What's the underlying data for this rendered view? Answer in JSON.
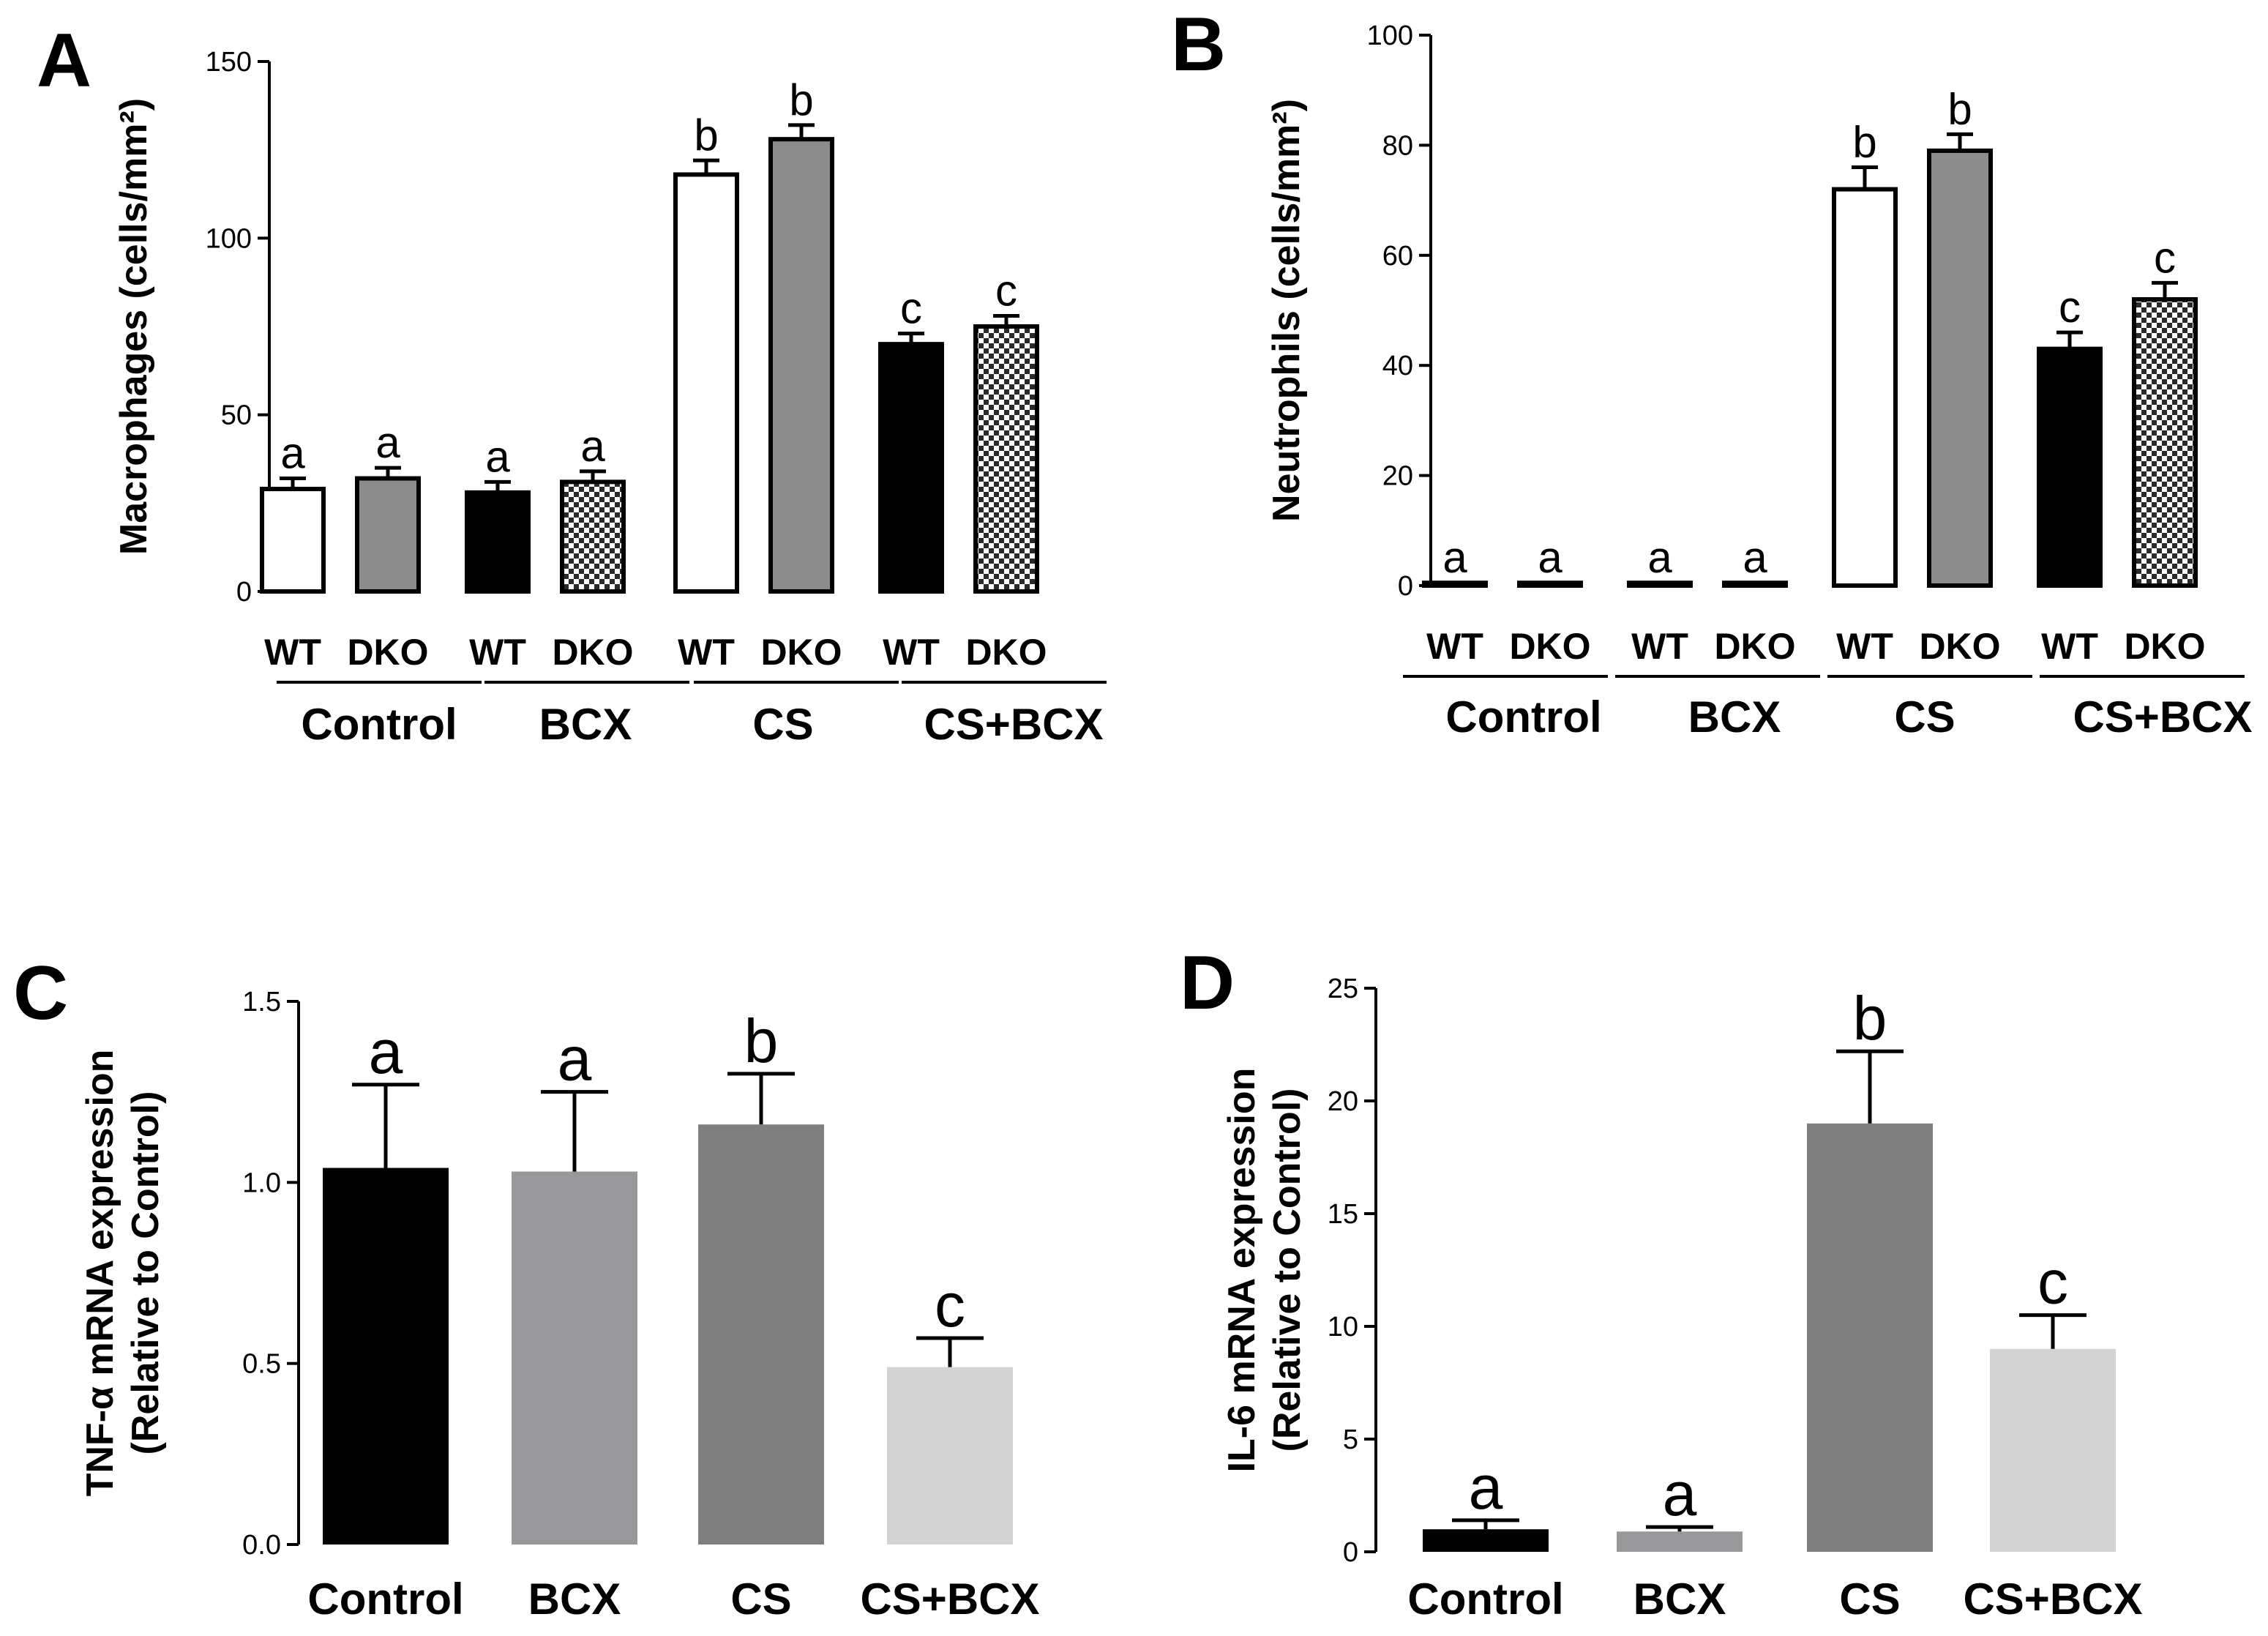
{
  "chart_data": [
    {
      "panel": "A",
      "type": "bar",
      "ylabel": "Macrophages (cells/mm²)",
      "ylim": [
        0,
        150
      ],
      "yticks": [
        0,
        50,
        100,
        150
      ],
      "groups": [
        "Control",
        "BCX",
        "CS",
        "CS+BCX"
      ],
      "subgroups": [
        "WT",
        "DKO"
      ],
      "bars": [
        {
          "group": "Control",
          "genotype": "WT",
          "value": 29,
          "error": 3,
          "letter": "a",
          "fill": "white"
        },
        {
          "group": "Control",
          "genotype": "DKO",
          "value": 32,
          "error": 3,
          "letter": "a",
          "fill": "gray"
        },
        {
          "group": "BCX",
          "genotype": "WT",
          "value": 28,
          "error": 3,
          "letter": "a",
          "fill": "black"
        },
        {
          "group": "BCX",
          "genotype": "DKO",
          "value": 31,
          "error": 3,
          "letter": "a",
          "fill": "checker"
        },
        {
          "group": "CS",
          "genotype": "WT",
          "value": 118,
          "error": 4,
          "letter": "b",
          "fill": "white"
        },
        {
          "group": "CS",
          "genotype": "DKO",
          "value": 128,
          "error": 4,
          "letter": "b",
          "fill": "gray"
        },
        {
          "group": "CS+BCX",
          "genotype": "WT",
          "value": 70,
          "error": 3,
          "letter": "c",
          "fill": "black"
        },
        {
          "group": "CS+BCX",
          "genotype": "DKO",
          "value": 75,
          "error": 3,
          "letter": "c",
          "fill": "checker"
        }
      ]
    },
    {
      "panel": "B",
      "type": "bar",
      "ylabel": "Neutrophils  (cells/mm²)",
      "ylim": [
        0,
        100
      ],
      "yticks": [
        0,
        20,
        40,
        60,
        80,
        100
      ],
      "groups": [
        "Control",
        "BCX",
        "CS",
        "CS+BCX"
      ],
      "subgroups": [
        "WT",
        "DKO"
      ],
      "bars": [
        {
          "group": "Control",
          "genotype": "WT",
          "value": 0.5,
          "error": 0,
          "letter": "a",
          "fill": "white"
        },
        {
          "group": "Control",
          "genotype": "DKO",
          "value": 0.5,
          "error": 0,
          "letter": "a",
          "fill": "gray"
        },
        {
          "group": "BCX",
          "genotype": "WT",
          "value": 0.5,
          "error": 0,
          "letter": "a",
          "fill": "black"
        },
        {
          "group": "BCX",
          "genotype": "DKO",
          "value": 0.5,
          "error": 0,
          "letter": "a",
          "fill": "checker"
        },
        {
          "group": "CS",
          "genotype": "WT",
          "value": 72,
          "error": 4,
          "letter": "b",
          "fill": "white"
        },
        {
          "group": "CS",
          "genotype": "DKO",
          "value": 79,
          "error": 3,
          "letter": "b",
          "fill": "gray"
        },
        {
          "group": "CS+BCX",
          "genotype": "WT",
          "value": 43,
          "error": 3,
          "letter": "c",
          "fill": "black"
        },
        {
          "group": "CS+BCX",
          "genotype": "DKO",
          "value": 52,
          "error": 3,
          "letter": "c",
          "fill": "checker"
        }
      ]
    },
    {
      "panel": "C",
      "type": "bar",
      "ylabel": [
        "TNF-α mRNA expression",
        "(Relative to Control)"
      ],
      "ylim": [
        0,
        1.5
      ],
      "yticks": [
        "0.0",
        "0.5",
        "1.0",
        "1.5"
      ],
      "bars": [
        {
          "category": "Control",
          "value": 1.04,
          "error": 0.23,
          "letter": "a",
          "color": "#000000"
        },
        {
          "category": "BCX",
          "value": 1.03,
          "error": 0.22,
          "letter": "a",
          "color": "#98989a"
        },
        {
          "category": "CS",
          "value": 1.16,
          "error": 0.14,
          "letter": "b",
          "color": "#7f7f7f"
        },
        {
          "category": "CS+BCX",
          "value": 0.49,
          "error": 0.08,
          "letter": "c",
          "color": "#d3d3d3"
        }
      ]
    },
    {
      "panel": "D",
      "type": "bar",
      "ylabel": [
        "IL-6 mRNA expression",
        "(Relative to Control)"
      ],
      "ylim": [
        0,
        25
      ],
      "yticks": [
        "0",
        "5",
        "10",
        "15",
        "20",
        "25"
      ],
      "bars": [
        {
          "category": "Control",
          "value": 1.0,
          "error": 0.4,
          "letter": "a",
          "color": "#000000"
        },
        {
          "category": "BCX",
          "value": 0.9,
          "error": 0.2,
          "letter": "a",
          "color": "#98989a"
        },
        {
          "category": "CS",
          "value": 19.0,
          "error": 3.2,
          "letter": "b",
          "color": "#7f7f7f"
        },
        {
          "category": "CS+BCX",
          "value": 9.0,
          "error": 1.5,
          "letter": "c",
          "color": "#d3d3d3"
        }
      ]
    }
  ]
}
